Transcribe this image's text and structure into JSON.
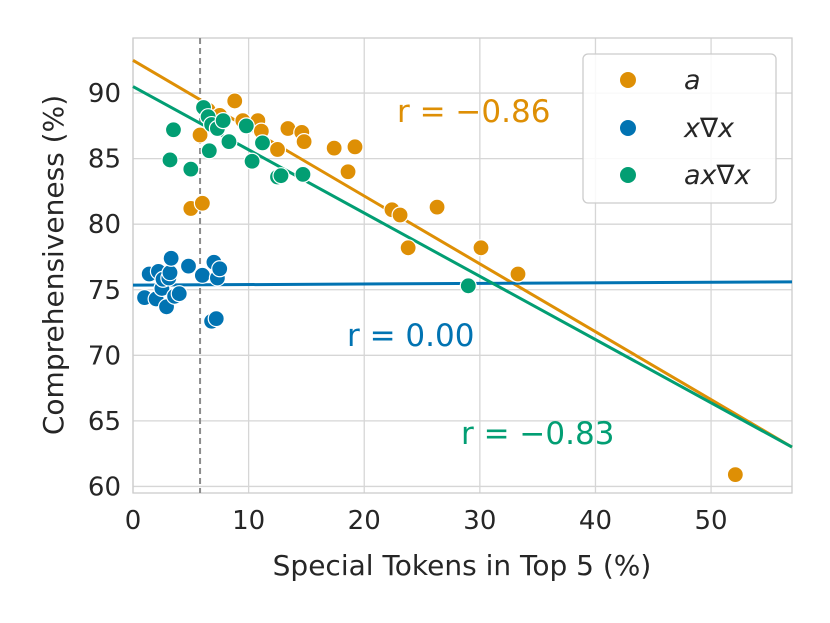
{
  "chart_data": {
    "type": "scatter",
    "xlabel": "Special Tokens in Top 5 (%)",
    "ylabel": "Comprehensiveness (%)",
    "xlim": [
      0,
      57
    ],
    "ylim": [
      59.5,
      94.2
    ],
    "xticks": [
      0,
      10,
      20,
      30,
      40,
      50
    ],
    "yticks": [
      60,
      65,
      70,
      75,
      80,
      85,
      90
    ],
    "grid": true,
    "legend_position": "top-right",
    "reference_vline_x": 5.8,
    "series": [
      {
        "name": "a",
        "color": "#de8f05",
        "points": [
          [
            5.0,
            81.2
          ],
          [
            5.8,
            86.8
          ],
          [
            6.0,
            81.6
          ],
          [
            6.5,
            88.7
          ],
          [
            7.2,
            87.6
          ],
          [
            7.5,
            88.3
          ],
          [
            8.8,
            89.4
          ],
          [
            9.5,
            87.9
          ],
          [
            10.8,
            87.9
          ],
          [
            11.1,
            87.1
          ],
          [
            12.5,
            85.7
          ],
          [
            13.4,
            87.3
          ],
          [
            14.6,
            87.0
          ],
          [
            14.8,
            86.3
          ],
          [
            17.4,
            85.8
          ],
          [
            18.6,
            84.0
          ],
          [
            19.2,
            85.9
          ],
          [
            22.4,
            81.1
          ],
          [
            23.1,
            80.7
          ],
          [
            23.8,
            78.2
          ],
          [
            26.3,
            81.3
          ],
          [
            30.1,
            78.2
          ],
          [
            33.3,
            76.2
          ],
          [
            52.1,
            60.9
          ]
        ],
        "fit_line": {
          "x": [
            0,
            57
          ],
          "y": [
            92.5,
            63.0
          ]
        },
        "annotation": "r = −0.86"
      },
      {
        "name": "x∇x",
        "color": "#0173b2",
        "points": [
          [
            1.0,
            74.4
          ],
          [
            1.4,
            76.2
          ],
          [
            2.0,
            74.3
          ],
          [
            2.2,
            76.4
          ],
          [
            2.5,
            75.1
          ],
          [
            2.6,
            75.8
          ],
          [
            2.9,
            73.7
          ],
          [
            3.1,
            75.9
          ],
          [
            3.2,
            76.3
          ],
          [
            3.3,
            77.4
          ],
          [
            3.6,
            74.5
          ],
          [
            4.0,
            74.7
          ],
          [
            4.8,
            76.8
          ],
          [
            6.0,
            76.1
          ],
          [
            6.8,
            72.6
          ],
          [
            7.0,
            77.1
          ],
          [
            7.2,
            72.8
          ],
          [
            7.3,
            75.9
          ],
          [
            7.5,
            76.6
          ]
        ],
        "fit_line": {
          "x": [
            0,
            57
          ],
          "y": [
            75.35,
            75.6
          ]
        },
        "annotation": "r = 0.00"
      },
      {
        "name": "ax∇x",
        "color": "#029e73",
        "points": [
          [
            3.2,
            84.9
          ],
          [
            3.5,
            87.2
          ],
          [
            5.0,
            84.2
          ],
          [
            6.1,
            88.9
          ],
          [
            6.5,
            88.2
          ],
          [
            6.8,
            87.6
          ],
          [
            7.3,
            87.3
          ],
          [
            7.8,
            87.9
          ],
          [
            8.3,
            86.3
          ],
          [
            9.8,
            87.5
          ],
          [
            10.3,
            84.8
          ],
          [
            11.2,
            86.2
          ],
          [
            12.5,
            83.6
          ],
          [
            12.8,
            83.7
          ],
          [
            14.7,
            83.8
          ],
          [
            29.0,
            75.3
          ],
          [
            6.6,
            85.6
          ]
        ],
        "fit_line": {
          "x": [
            0,
            57
          ],
          "y": [
            90.5,
            63.0
          ]
        },
        "annotation": "r = −0.83"
      }
    ]
  }
}
